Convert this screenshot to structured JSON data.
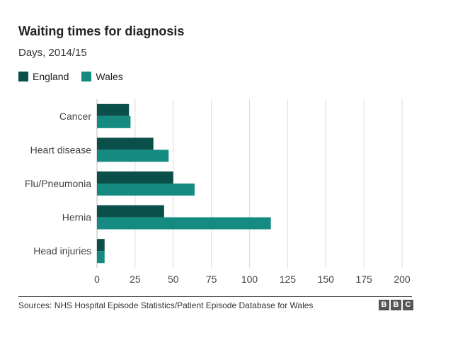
{
  "header": {
    "title": "Waiting times for diagnosis",
    "subtitle": "Days, 2014/15"
  },
  "footer": {
    "source": "Sources: NHS Hospital Episode Statistics/Patient Episode Database for Wales",
    "logo_letters": [
      "B",
      "B",
      "C"
    ]
  },
  "colors": {
    "england": "#0b4f4a",
    "wales": "#158a80",
    "grid": "#dddddd",
    "axis_text": "#444444"
  },
  "chart_data": {
    "type": "bar",
    "orientation": "horizontal",
    "title": "Waiting times for diagnosis",
    "subtitle": "Days, 2014/15",
    "categories": [
      "Cancer",
      "Heart disease",
      "Flu/Pneumonia",
      "Hernia",
      "Head injuries"
    ],
    "series": [
      {
        "name": "England",
        "values": [
          21,
          37,
          50,
          44,
          5
        ]
      },
      {
        "name": "Wales",
        "values": [
          22,
          47,
          64,
          114,
          5
        ]
      }
    ],
    "xlim": [
      0,
      200
    ],
    "xticks": [
      "0",
      "25",
      "50",
      "75",
      "100",
      "125",
      "150",
      "175",
      "200"
    ],
    "grid": true,
    "legend": "top-left"
  }
}
